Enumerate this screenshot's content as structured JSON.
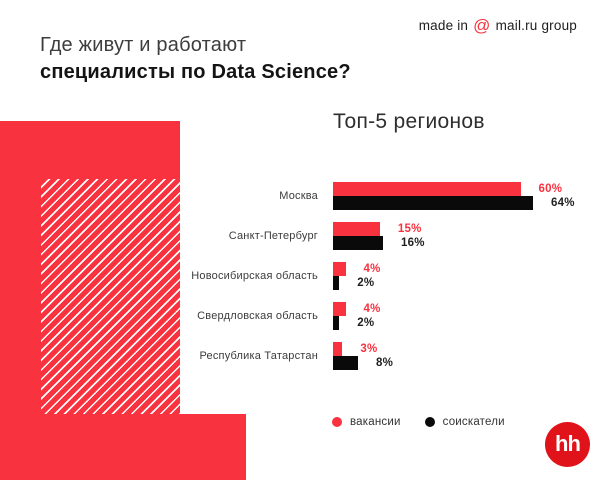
{
  "header": {
    "made_in_prefix": "made in",
    "made_in_at": "@",
    "made_in_brand": "mail.ru group",
    "title_line1": "Где живут и работают",
    "title_line2": "специалисты по Data Science?"
  },
  "chart_data": {
    "type": "bar",
    "orientation": "horizontal",
    "title": "Топ-5 регионов",
    "categories": [
      "Москва",
      "Санкт-Петербург",
      "Новосибирская область",
      "Свердловская область",
      "Республика Татарстан"
    ],
    "series": [
      {
        "name": "вакансии",
        "color": "#F8323E",
        "label_color": "#F8323E",
        "values": [
          60,
          15,
          4,
          4,
          3
        ]
      },
      {
        "name": "соискатели",
        "color": "#0a0a0a",
        "label_color": "#1f1f1f",
        "values": [
          64,
          16,
          2,
          2,
          8
        ]
      }
    ],
    "value_suffix": "%",
    "xlim": [
      0,
      64
    ],
    "grid": false,
    "legend_position": "bottom"
  },
  "logo": {
    "text": "hh"
  },
  "colors": {
    "brand_red": "#F8323E",
    "black": "#0a0a0a",
    "logo_red": "#E0121A",
    "background": "#ffffff"
  }
}
